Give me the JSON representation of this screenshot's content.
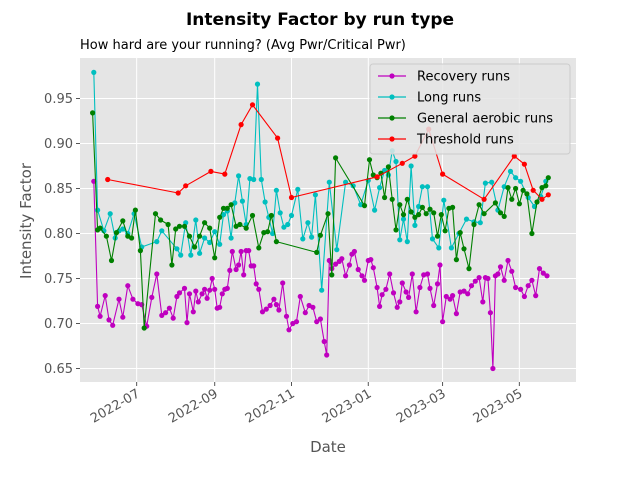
{
  "chart_data": {
    "type": "line",
    "title": "Intensity Factor by run type",
    "subtitle": "How hard are your running? (Avg Pwr/Critical Pwr)",
    "xlabel": "Date",
    "ylabel": "Intensity Factor",
    "xlim": [
      "2022-05-17",
      "2023-06-15"
    ],
    "ylim": [
      0.635,
      0.995
    ],
    "x_ticks": [
      "2022-07-01",
      "2022-09-01",
      "2022-11-01",
      "2023-01-01",
      "2023-03-01",
      "2023-05-01"
    ],
    "x_tick_labels": [
      "2022-07",
      "2022-09",
      "2022-11",
      "2023-01",
      "2023-03",
      "2023-05"
    ],
    "y_ticks": [
      0.65,
      0.7,
      0.75,
      0.8,
      0.85,
      0.9,
      0.95
    ],
    "y_tick_labels": [
      "0.65",
      "0.70",
      "0.75",
      "0.80",
      "0.85",
      "0.90",
      "0.95"
    ],
    "grid": true,
    "legend": "top-right",
    "series": [
      {
        "name": "Recovery runs",
        "color": "#bf00bf",
        "x": [
          "2022-05-28",
          "2022-05-31",
          "2022-06-02",
          "2022-06-06",
          "2022-06-09",
          "2022-06-12",
          "2022-06-17",
          "2022-06-20",
          "2022-06-24",
          "2022-06-28",
          "2022-07-02",
          "2022-07-05",
          "2022-07-09",
          "2022-07-13",
          "2022-07-17",
          "2022-07-21",
          "2022-07-24",
          "2022-07-27",
          "2022-07-30",
          "2022-08-02",
          "2022-08-04",
          "2022-08-08",
          "2022-08-10",
          "2022-08-12",
          "2022-08-15",
          "2022-08-17",
          "2022-08-19",
          "2022-08-22",
          "2022-08-24",
          "2022-08-26",
          "2022-08-28",
          "2022-08-30",
          "2022-09-01",
          "2022-09-03",
          "2022-09-05",
          "2022-09-07",
          "2022-09-09",
          "2022-09-11",
          "2022-09-13",
          "2022-09-15",
          "2022-09-18",
          "2022-09-20",
          "2022-09-22",
          "2022-09-24",
          "2022-09-26",
          "2022-09-28",
          "2022-09-30",
          "2022-10-02",
          "2022-10-04",
          "2022-10-06",
          "2022-10-09",
          "2022-10-12",
          "2022-10-15",
          "2022-10-18",
          "2022-10-20",
          "2022-10-22",
          "2022-10-25",
          "2022-10-28",
          "2022-10-30",
          "2022-11-02",
          "2022-11-05",
          "2022-11-08",
          "2022-11-12",
          "2022-11-15",
          "2022-11-18",
          "2022-11-21",
          "2022-11-24",
          "2022-11-27",
          "2022-11-29",
          "2022-12-01",
          "2022-12-03",
          "2022-12-06",
          "2022-12-09",
          "2022-12-11",
          "2022-12-14",
          "2022-12-17",
          "2022-12-19",
          "2022-12-21",
          "2022-12-24",
          "2022-12-27",
          "2022-12-29",
          "2023-01-01",
          "2023-01-03",
          "2023-01-05",
          "2023-01-08",
          "2023-01-10",
          "2023-01-12",
          "2023-01-15",
          "2023-01-18",
          "2023-01-21",
          "2023-01-24",
          "2023-01-26",
          "2023-01-28",
          "2023-01-31",
          "2023-02-02",
          "2023-02-05",
          "2023-02-08",
          "2023-02-11",
          "2023-02-14",
          "2023-02-17",
          "2023-02-19",
          "2023-02-22",
          "2023-02-25",
          "2023-02-27",
          "2023-03-01",
          "2023-03-04",
          "2023-03-07",
          "2023-03-09",
          "2023-03-12",
          "2023-03-15",
          "2023-03-18",
          "2023-03-21",
          "2023-03-24",
          "2023-03-27",
          "2023-03-30",
          "2023-04-02",
          "2023-04-04",
          "2023-04-06",
          "2023-04-08",
          "2023-04-10",
          "2023-04-12",
          "2023-04-14",
          "2023-04-16",
          "2023-04-19",
          "2023-04-22",
          "2023-04-25",
          "2023-04-28",
          "2023-05-02",
          "2023-05-05",
          "2023-05-08",
          "2023-05-11",
          "2023-05-14",
          "2023-05-17",
          "2023-05-20",
          "2023-05-23"
        ],
        "values": [
          0.858,
          0.719,
          0.708,
          0.731,
          0.704,
          0.698,
          0.727,
          0.707,
          0.742,
          0.727,
          0.722,
          0.721,
          0.697,
          0.729,
          0.755,
          0.709,
          0.712,
          0.717,
          0.706,
          0.73,
          0.734,
          0.739,
          0.701,
          0.733,
          0.713,
          0.736,
          0.724,
          0.733,
          0.738,
          0.728,
          0.737,
          0.75,
          0.738,
          0.717,
          0.718,
          0.733,
          0.738,
          0.739,
          0.759,
          0.78,
          0.76,
          0.765,
          0.78,
          0.754,
          0.781,
          0.781,
          0.764,
          0.764,
          0.744,
          0.738,
          0.713,
          0.716,
          0.72,
          0.727,
          0.721,
          0.715,
          0.745,
          0.708,
          0.693,
          0.7,
          0.702,
          0.73,
          0.712,
          0.72,
          0.718,
          0.702,
          0.705,
          0.68,
          0.665,
          0.77,
          0.761,
          0.766,
          0.769,
          0.772,
          0.753,
          0.765,
          0.777,
          0.78,
          0.76,
          0.753,
          0.748,
          0.77,
          0.771,
          0.762,
          0.74,
          0.719,
          0.732,
          0.738,
          0.755,
          0.734,
          0.718,
          0.724,
          0.745,
          0.735,
          0.729,
          0.755,
          0.713,
          0.74,
          0.754,
          0.755,
          0.739,
          0.72,
          0.744,
          0.765,
          0.702,
          0.73,
          0.727,
          0.731,
          0.711,
          0.735,
          0.736,
          0.733,
          0.742,
          0.747,
          0.751,
          0.724,
          0.751,
          0.75,
          0.712,
          0.65,
          0.753,
          0.755,
          0.763,
          0.748,
          0.77,
          0.758,
          0.74,
          0.738,
          0.73,
          0.742,
          0.748,
          0.731,
          0.761,
          0.756,
          0.753
        ]
      },
      {
        "name": "Long runs",
        "color": "#00bfbf",
        "x": [
          "2022-05-28",
          "2022-05-31",
          "2022-06-05",
          "2022-06-10",
          "2022-06-14",
          "2022-06-17",
          "2022-06-20",
          "2022-06-24",
          "2022-06-29",
          "2022-07-05",
          "2022-07-17",
          "2022-07-21",
          "2022-08-02",
          "2022-08-05",
          "2022-08-09",
          "2022-08-13",
          "2022-08-17",
          "2022-08-20",
          "2022-08-24",
          "2022-08-28",
          "2022-09-01",
          "2022-09-05",
          "2022-09-08",
          "2022-09-11",
          "2022-09-14",
          "2022-09-17",
          "2022-09-20",
          "2022-09-23",
          "2022-09-26",
          "2022-09-29",
          "2022-10-02",
          "2022-10-05",
          "2022-10-08",
          "2022-10-11",
          "2022-10-14",
          "2022-10-17",
          "2022-10-20",
          "2022-10-23",
          "2022-10-26",
          "2022-10-29",
          "2022-11-01",
          "2022-11-06",
          "2022-11-10",
          "2022-11-14",
          "2022-11-17",
          "2022-11-20",
          "2022-11-25",
          "2022-12-01",
          "2022-12-07",
          "2022-12-14",
          "2022-12-20",
          "2022-12-26",
          "2023-01-01",
          "2023-01-06",
          "2023-01-10",
          "2023-01-14",
          "2023-01-17",
          "2023-01-20",
          "2023-01-23",
          "2023-01-26",
          "2023-01-29",
          "2023-02-01",
          "2023-02-04",
          "2023-02-07",
          "2023-02-10",
          "2023-02-13",
          "2023-02-17",
          "2023-02-21",
          "2023-02-26",
          "2023-03-02",
          "2023-03-08",
          "2023-03-14",
          "2023-03-20",
          "2023-03-26",
          "2023-03-31",
          "2023-04-04",
          "2023-04-09",
          "2023-04-14",
          "2023-04-19",
          "2023-04-24",
          "2023-04-28",
          "2023-05-02",
          "2023-05-08",
          "2023-05-13",
          "2023-05-18",
          "2023-05-22"
        ],
        "values": [
          0.979,
          0.826,
          0.803,
          0.822,
          0.795,
          0.803,
          0.805,
          0.8,
          0.822,
          0.785,
          0.791,
          0.803,
          0.783,
          0.776,
          0.812,
          0.776,
          0.815,
          0.778,
          0.795,
          0.79,
          0.802,
          0.788,
          0.821,
          0.825,
          0.795,
          0.834,
          0.864,
          0.836,
          0.81,
          0.861,
          0.86,
          0.966,
          0.86,
          0.835,
          0.818,
          0.8,
          0.848,
          0.823,
          0.807,
          0.81,
          0.82,
          0.849,
          0.794,
          0.812,
          0.796,
          0.843,
          0.737,
          0.857,
          0.782,
          0.857,
          0.853,
          0.832,
          0.859,
          0.826,
          0.851,
          0.87,
          0.865,
          0.892,
          0.88,
          0.793,
          0.816,
          0.791,
          0.875,
          0.809,
          0.83,
          0.852,
          0.852,
          0.794,
          0.784,
          0.837,
          0.784,
          0.8,
          0.816,
          0.813,
          0.812,
          0.856,
          0.857,
          0.826,
          0.852,
          0.869,
          0.862,
          0.858,
          0.84,
          0.83,
          0.841,
          0.858
        ]
      },
      {
        "name": "General aerobic runs",
        "color": "#008000",
        "x": [
          "2022-05-27",
          "2022-05-31",
          "2022-06-02",
          "2022-06-07",
          "2022-06-11",
          "2022-06-15",
          "2022-06-20",
          "2022-06-24",
          "2022-06-27",
          "2022-06-30",
          "2022-07-04",
          "2022-07-07",
          "2022-07-16",
          "2022-07-20",
          "2022-07-26",
          "2022-07-29",
          "2022-08-01",
          "2022-08-04",
          "2022-08-08",
          "2022-08-12",
          "2022-08-16",
          "2022-08-20",
          "2022-08-24",
          "2022-08-28",
          "2022-09-01",
          "2022-09-05",
          "2022-09-08",
          "2022-09-11",
          "2022-09-14",
          "2022-09-18",
          "2022-09-21",
          "2022-09-26",
          "2022-10-01",
          "2022-10-06",
          "2022-10-10",
          "2022-10-13",
          "2022-10-16",
          "2022-10-20",
          "2022-11-21",
          "2022-11-24",
          "2022-11-30",
          "2022-12-03",
          "2022-12-06",
          "2022-12-29",
          "2023-01-02",
          "2023-01-05",
          "2023-01-08",
          "2023-01-11",
          "2023-01-14",
          "2023-01-17",
          "2023-01-20",
          "2023-01-23",
          "2023-01-26",
          "2023-01-29",
          "2023-02-01",
          "2023-02-04",
          "2023-02-07",
          "2023-02-10",
          "2023-02-13",
          "2023-02-16",
          "2023-02-19",
          "2023-02-22",
          "2023-02-25",
          "2023-02-28",
          "2023-03-03",
          "2023-03-06",
          "2023-03-09",
          "2023-03-12",
          "2023-03-15",
          "2023-03-18",
          "2023-03-22",
          "2023-03-26",
          "2023-03-30",
          "2023-04-03",
          "2023-04-12",
          "2023-04-16",
          "2023-04-19",
          "2023-04-22",
          "2023-04-25",
          "2023-04-28",
          "2023-05-01",
          "2023-05-04",
          "2023-05-07",
          "2023-05-11",
          "2023-05-15",
          "2023-05-19",
          "2023-05-22",
          "2023-05-24"
        ],
        "values": [
          0.934,
          0.804,
          0.806,
          0.797,
          0.77,
          0.801,
          0.814,
          0.797,
          0.795,
          0.826,
          0.781,
          0.695,
          0.822,
          0.815,
          0.81,
          0.765,
          0.805,
          0.808,
          0.808,
          0.797,
          0.785,
          0.797,
          0.812,
          0.806,
          0.773,
          0.818,
          0.828,
          0.828,
          0.832,
          0.808,
          0.81,
          0.806,
          0.82,
          0.784,
          0.801,
          0.802,
          0.82,
          0.791,
          0.779,
          0.798,
          0.822,
          0.754,
          0.884,
          0.831,
          0.882,
          0.865,
          0.862,
          0.867,
          0.84,
          0.874,
          0.838,
          0.804,
          0.832,
          0.821,
          0.838,
          0.824,
          0.818,
          0.821,
          0.829,
          0.822,
          0.827,
          0.823,
          0.797,
          0.821,
          0.803,
          0.828,
          0.829,
          0.771,
          0.801,
          0.783,
          0.761,
          0.81,
          0.832,
          0.822,
          0.834,
          0.823,
          0.819,
          0.851,
          0.838,
          0.85,
          0.833,
          0.848,
          0.844,
          0.8,
          0.835,
          0.851,
          0.853,
          0.862
        ]
      },
      {
        "name": "Threshold runs",
        "color": "#ff0000",
        "x": [
          "2022-06-08",
          "2022-08-03",
          "2022-08-09",
          "2022-08-29",
          "2022-09-09",
          "2022-09-22",
          "2022-10-01",
          "2022-10-21",
          "2022-11-01",
          "2023-01-08",
          "2023-01-28",
          "2023-02-07",
          "2023-02-18",
          "2023-03-01",
          "2023-04-03",
          "2023-04-27",
          "2023-05-05",
          "2023-05-12",
          "2023-05-19",
          "2023-05-24"
        ],
        "values": [
          0.86,
          0.845,
          0.853,
          0.869,
          0.866,
          0.921,
          0.943,
          0.906,
          0.84,
          0.863,
          0.878,
          0.886,
          0.916,
          0.866,
          0.838,
          0.886,
          0.877,
          0.848,
          0.838,
          0.843
        ]
      }
    ]
  }
}
